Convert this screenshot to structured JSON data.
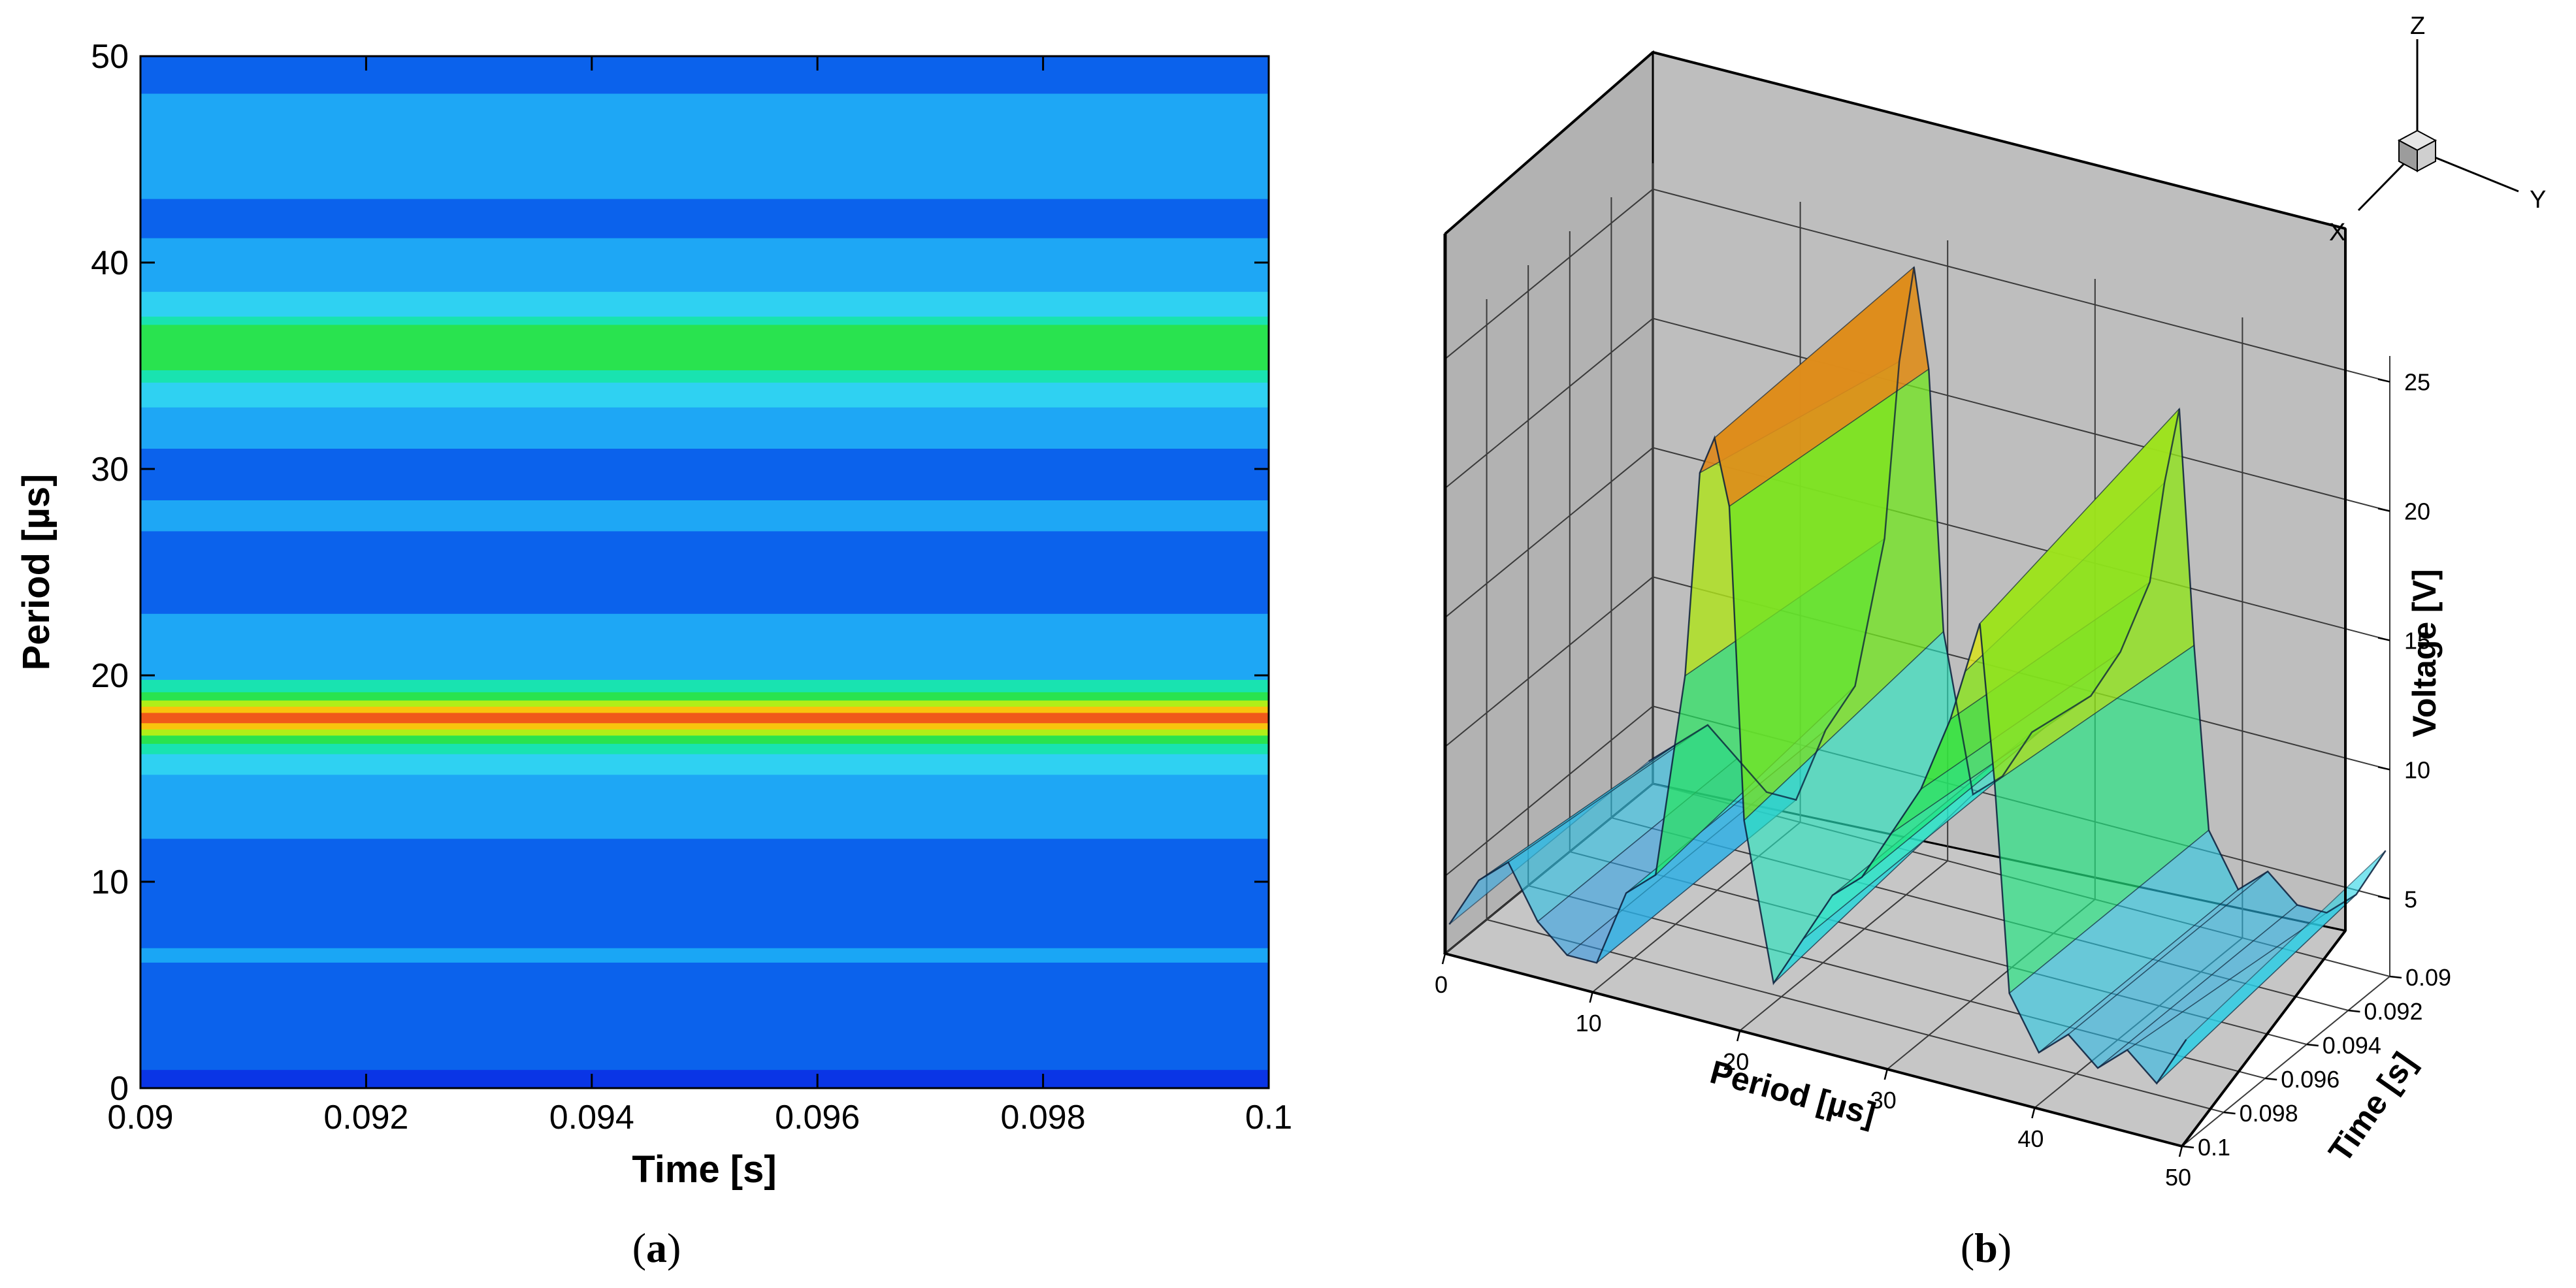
{
  "chart_data": [
    {
      "panel": "a",
      "type": "heatmap",
      "xlabel": "Time [s]",
      "ylabel": "Period [µs]",
      "xlim": [
        0.09,
        0.1
      ],
      "ylim": [
        0,
        50
      ],
      "xticks": [
        "0.09",
        "0.092",
        "0.094",
        "0.096",
        "0.098",
        "0.1"
      ],
      "yticks": [
        "0",
        "10",
        "20",
        "30",
        "40",
        "50"
      ],
      "bands": [
        {
          "y0": 0.0,
          "y1": 0.9,
          "color": "#0a35e6"
        },
        {
          "y0": 0.9,
          "y1": 6.1,
          "color": "#0b62ec"
        },
        {
          "y0": 6.1,
          "y1": 6.8,
          "color": "#1aa6f5"
        },
        {
          "y0": 6.8,
          "y1": 12.1,
          "color": "#0b62ec"
        },
        {
          "y0": 12.1,
          "y1": 15.2,
          "color": "#1ea7f5"
        },
        {
          "y0": 15.2,
          "y1": 16.2,
          "color": "#2fd1f2"
        },
        {
          "y0": 16.2,
          "y1": 16.7,
          "color": "#19e3b0"
        },
        {
          "y0": 16.7,
          "y1": 17.1,
          "color": "#29e34f"
        },
        {
          "y0": 17.1,
          "y1": 17.4,
          "color": "#b0ef18"
        },
        {
          "y0": 17.4,
          "y1": 17.7,
          "color": "#f9c30d"
        },
        {
          "y0": 17.7,
          "y1": 18.2,
          "color": "#f0591a"
        },
        {
          "y0": 18.2,
          "y1": 18.5,
          "color": "#f9c30d"
        },
        {
          "y0": 18.5,
          "y1": 18.8,
          "color": "#b0ef18"
        },
        {
          "y0": 18.8,
          "y1": 19.2,
          "color": "#29e34f"
        },
        {
          "y0": 19.2,
          "y1": 19.8,
          "color": "#19e3b0"
        },
        {
          "y0": 19.8,
          "y1": 23.0,
          "color": "#1ea7f5"
        },
        {
          "y0": 23.0,
          "y1": 27.0,
          "color": "#0b62ec"
        },
        {
          "y0": 27.0,
          "y1": 28.5,
          "color": "#1ea7f5"
        },
        {
          "y0": 28.5,
          "y1": 31.0,
          "color": "#0b62ec"
        },
        {
          "y0": 31.0,
          "y1": 33.0,
          "color": "#1ea7f5"
        },
        {
          "y0": 33.0,
          "y1": 34.2,
          "color": "#2fd1f2"
        },
        {
          "y0": 34.2,
          "y1": 34.8,
          "color": "#19e3b0"
        },
        {
          "y0": 34.8,
          "y1": 37.0,
          "color": "#29e34f"
        },
        {
          "y0": 37.0,
          "y1": 37.4,
          "color": "#19e3b0"
        },
        {
          "y0": 37.4,
          "y1": 38.6,
          "color": "#2fd1f2"
        },
        {
          "y0": 38.6,
          "y1": 41.2,
          "color": "#1ea7f5"
        },
        {
          "y0": 41.2,
          "y1": 43.1,
          "color": "#0b62ec"
        },
        {
          "y0": 43.1,
          "y1": 48.2,
          "color": "#1ea7f5"
        },
        {
          "y0": 48.2,
          "y1": 50.0,
          "color": "#0b62ec"
        }
      ]
    },
    {
      "panel": "b",
      "type": "area",
      "xlabel": "Period [µs]",
      "ylabel": "Time [s]",
      "zlabel": "Voltage [V]",
      "xticks": [
        "0",
        "10",
        "20",
        "30",
        "40",
        "50"
      ],
      "yticks": [
        "0.09",
        "0.092",
        "0.094",
        "0.096",
        "0.098",
        "0.1"
      ],
      "zticks": [
        "5",
        "10",
        "15",
        "20",
        "25"
      ],
      "zlim": [
        2,
        26
      ],
      "period": [
        0,
        2,
        4,
        6,
        8,
        10,
        12,
        14,
        16,
        17,
        18,
        19,
        20,
        22,
        24,
        26,
        28,
        30,
        32,
        34,
        35,
        36,
        37,
        38,
        40,
        42,
        44,
        46,
        48,
        50
      ],
      "voltage_front": [
        3,
        5,
        6,
        4,
        3,
        3,
        6,
        7,
        15,
        23,
        24.5,
        22,
        10,
        4,
        6,
        8,
        9,
        11,
        13,
        16,
        18,
        20,
        14,
        6,
        4,
        5,
        4,
        5,
        4,
        6
      ],
      "voltage_back": [
        3,
        4,
        5,
        4,
        3,
        3,
        6,
        8,
        14,
        21,
        24.8,
        21,
        11,
        5,
        6,
        8,
        9,
        10,
        12,
        15,
        19,
        22,
        13,
        6,
        4,
        5,
        4,
        4,
        5,
        7
      ]
    }
  ],
  "axes_triad": {
    "x": "X",
    "y": "Y",
    "z": "Z"
  },
  "captions": {
    "a": {
      "open": "(",
      "letter": "a",
      "close": ")"
    },
    "b": {
      "open": "(",
      "letter": "b",
      "close": ")"
    }
  },
  "colors": {
    "background": "#ffffff",
    "wall": "#bdbdbd",
    "wall_shade": "#a9a9a9",
    "floor": "#c4c4c4"
  }
}
